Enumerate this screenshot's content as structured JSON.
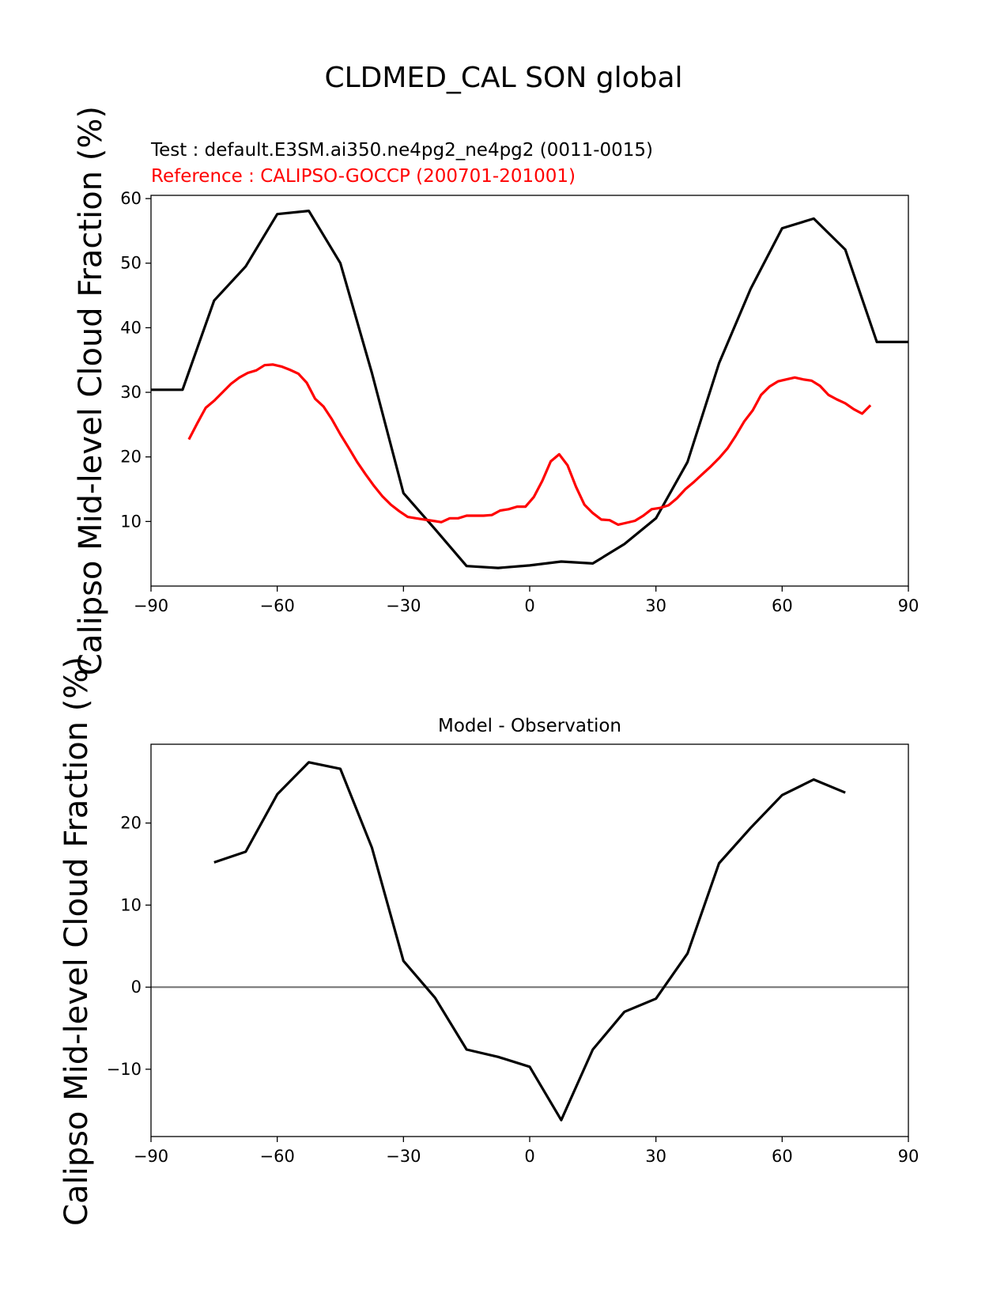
{
  "figure": {
    "title": "CLDMED_CAL SON global"
  },
  "chart_data": [
    {
      "type": "line",
      "test_label": "Test : default.E3SM.ai350.ne4pg2_ne4pg2 (0011-0015)",
      "reference_label": "Reference : CALIPSO-GOCCP (200701-201001)",
      "xlabel": "",
      "ylabel": "Calipso Mid-level Cloud Fraction (%)",
      "xlim": [
        -90,
        90
      ],
      "ylim": [
        0,
        60.5
      ],
      "xticks": [
        -90,
        -60,
        -30,
        0,
        30,
        60,
        90
      ],
      "yticks": [
        10,
        20,
        30,
        40,
        50,
        60
      ],
      "grid": false,
      "colors": {
        "test": "#000000",
        "reference": "#ff0000"
      },
      "series": [
        {
          "key": "test",
          "x": [
            -90,
            -82.5,
            -75,
            -67.5,
            -60,
            -52.5,
            -45,
            -37.5,
            -30,
            -22.5,
            -15,
            -7.5,
            0,
            7.5,
            15,
            22.5,
            30,
            37.5,
            45,
            52.5,
            60,
            67.5,
            75,
            82.5,
            90
          ],
          "y": [
            30.4,
            30.4,
            44.2,
            49.5,
            57.6,
            58.1,
            50.0,
            33.0,
            14.4,
            8.8,
            3.1,
            2.8,
            3.2,
            3.8,
            3.5,
            6.5,
            10.5,
            19.2,
            34.5,
            46.0,
            55.4,
            56.9,
            52.1,
            37.8,
            37.8
          ]
        },
        {
          "key": "reference",
          "x": [
            -81,
            -79,
            -77,
            -75,
            -73,
            -71,
            -69,
            -67,
            -65,
            -63,
            -61,
            -59,
            -57,
            -55,
            -53,
            -51,
            -49,
            -47,
            -45,
            -43,
            -41,
            -39,
            -37,
            -35,
            -33,
            -31,
            -29,
            -27,
            -25,
            -23,
            -21,
            -19,
            -17,
            -15,
            -13,
            -11,
            -9,
            -7,
            -5,
            -3,
            -1,
            1,
            3,
            5,
            7,
            9,
            11,
            13,
            15,
            17,
            19,
            21,
            23,
            25,
            27,
            29,
            31,
            33,
            35,
            37,
            39,
            41,
            43,
            45,
            47,
            49,
            51,
            53,
            55,
            57,
            59,
            61,
            63,
            65,
            67,
            69,
            71,
            73,
            75,
            77,
            79,
            81
          ],
          "y": [
            22.7,
            25.2,
            27.6,
            28.7,
            30.0,
            31.3,
            32.3,
            33.0,
            33.4,
            34.2,
            34.3,
            34.0,
            33.5,
            32.9,
            31.5,
            29.0,
            27.8,
            25.8,
            23.5,
            21.4,
            19.2,
            17.3,
            15.5,
            13.9,
            12.6,
            11.6,
            10.7,
            10.5,
            10.3,
            10.1,
            9.9,
            10.5,
            10.5,
            10.9,
            10.9,
            10.9,
            11.0,
            11.7,
            11.9,
            12.3,
            12.3,
            13.8,
            16.3,
            19.3,
            20.4,
            18.7,
            15.4,
            12.6,
            11.3,
            10.3,
            10.2,
            9.5,
            9.8,
            10.1,
            10.9,
            11.9,
            12.1,
            12.5,
            13.6,
            15.0,
            16.1,
            17.3,
            18.5,
            19.8,
            21.3,
            23.3,
            25.5,
            27.2,
            29.6,
            30.9,
            31.7,
            32.0,
            32.3,
            32.0,
            31.8,
            31.0,
            29.6,
            28.9,
            28.3,
            27.4,
            26.7,
            28.0
          ]
        }
      ]
    },
    {
      "type": "line",
      "title": "Model - Observation",
      "xlabel": "",
      "ylabel": "Calipso Mid-level Cloud Fraction (%)",
      "xlim": [
        -90,
        90
      ],
      "ylim": [
        -18.2,
        29.6
      ],
      "xticks": [
        -90,
        -60,
        -30,
        0,
        30,
        60,
        90
      ],
      "yticks": [
        -10,
        0,
        10,
        20
      ],
      "grid": false,
      "zero_line_color": "#808080",
      "colors": {
        "diff": "#000000"
      },
      "series": [
        {
          "key": "diff",
          "x": [
            -75,
            -67.5,
            -60,
            -52.5,
            -45,
            -37.5,
            -30,
            -22.5,
            -15,
            -7.5,
            0,
            7.5,
            15,
            22.5,
            30,
            37.5,
            45,
            52.5,
            60,
            67.5,
            75
          ],
          "y": [
            15.2,
            16.5,
            23.5,
            27.4,
            26.6,
            17.0,
            3.2,
            -1.3,
            -7.6,
            -8.5,
            -9.7,
            -16.2,
            -7.6,
            -3.0,
            -1.4,
            4.1,
            15.1,
            19.4,
            23.4,
            25.3,
            23.7
          ]
        }
      ]
    }
  ]
}
